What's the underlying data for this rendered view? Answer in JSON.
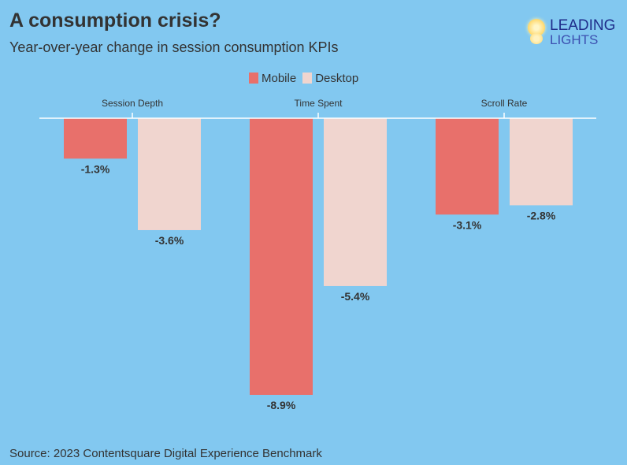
{
  "title": "A consumption crisis?",
  "subtitle": "Year-over-year change in session consumption KPIs",
  "logo": {
    "line1": "LEADING",
    "line2": "LIGHTS"
  },
  "source": "Source: 2023 Contentsquare Digital Experience Benchmark",
  "chart_data": {
    "type": "bar",
    "categories": [
      "Session Depth",
      "Time Spent",
      "Scroll Rate"
    ],
    "series": [
      {
        "name": "Mobile",
        "values": [
          -1.3,
          -8.9,
          -3.1
        ],
        "labels": [
          "-1.3%",
          "-8.9%",
          "-3.1%"
        ],
        "color": "#e8706b"
      },
      {
        "name": "Desktop",
        "values": [
          -3.6,
          -5.4,
          -2.8
        ],
        "labels": [
          "-3.6%",
          "-5.4%",
          "-2.8%"
        ],
        "color": "#f0d5cf"
      }
    ],
    "unit": "%",
    "ylim": [
      -8.9,
      0
    ],
    "legend": "top-center",
    "grid": false,
    "background": "#82c8f0"
  }
}
